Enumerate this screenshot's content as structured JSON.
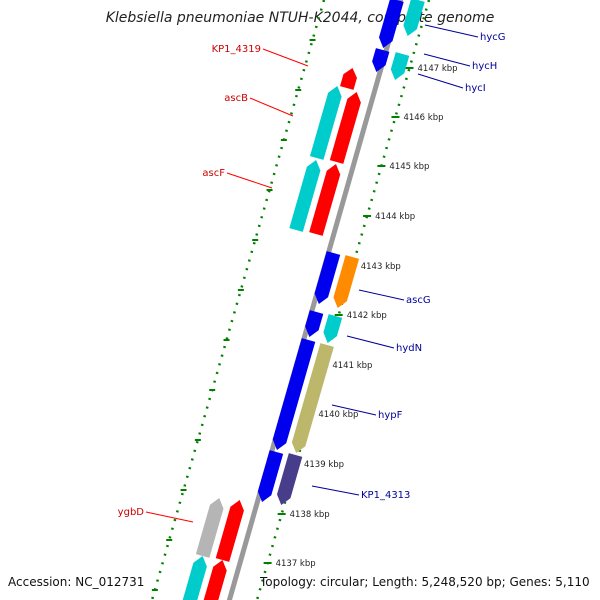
{
  "title": "Klebsiella pneumoniae NTUH-K2044, complete genome",
  "accession": "Accession: NC_012731",
  "topology": "Topology: circular; Length: 5,248,520 bp; Genes: 5,110",
  "colors": {
    "backbone": "#999999",
    "ticks": "#008000",
    "forward_label": "#cc0000",
    "reverse_label": "#000099",
    "red": "#ff0000",
    "cyan": "#00cccc",
    "blue": "#0000ee",
    "orange": "#ff8c00",
    "khaki": "#bdb76b",
    "slateblue": "#483d8b",
    "gray": "#b5b5b5"
  },
  "ruler": {
    "unit": "kbp",
    "labels": [
      "4147 kbp",
      "4146 kbp",
      "4145 kbp",
      "4144 kbp",
      "4143 kbp",
      "4142 kbp",
      "4141 kbp",
      "4140 kbp",
      "4139 kbp",
      "4138 kbp",
      "4137 kbp"
    ]
  },
  "forward_labels": [
    "KP1_4319",
    "ascB",
    "ascF",
    "ygbD"
  ],
  "reverse_labels": [
    "hycG",
    "hycH",
    "hycI",
    "ascG",
    "hydN",
    "hypF",
    "KP1_4313"
  ]
}
